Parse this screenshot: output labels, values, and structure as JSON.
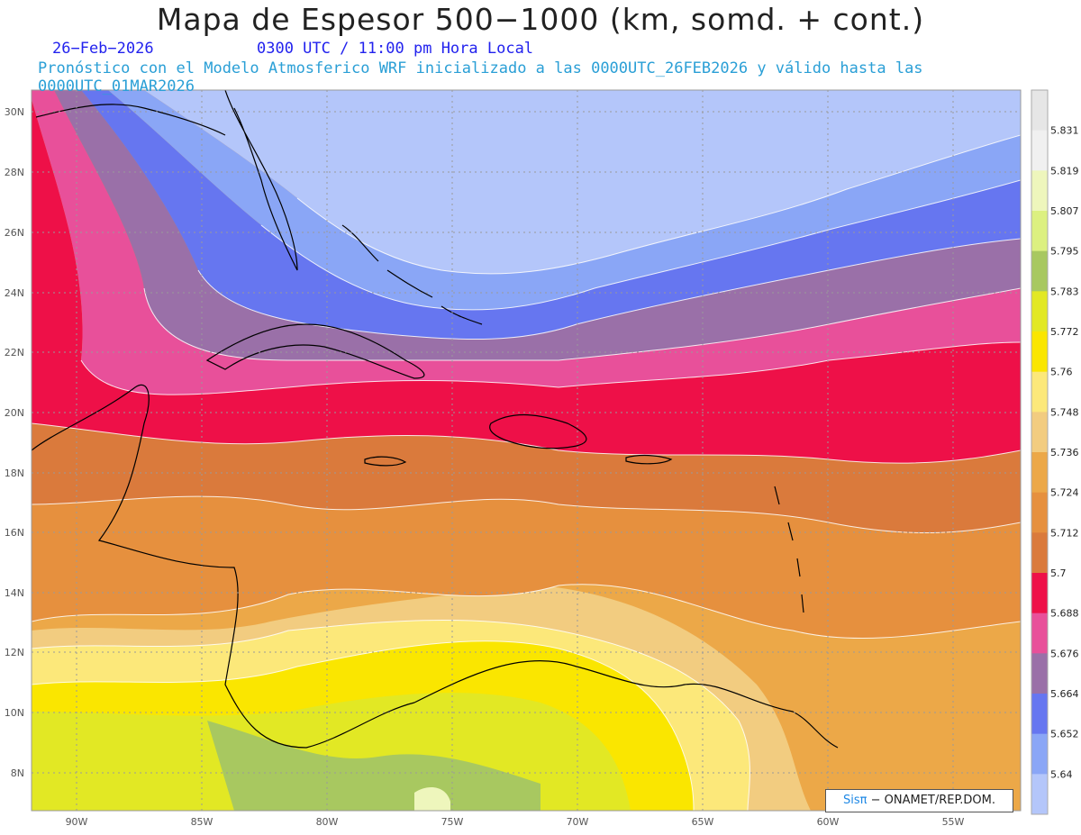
{
  "title": "Mapa de Espesor 500−1000 (km, somd. + cont.)",
  "date": "26−Feb−2026",
  "time": "0300 UTC / 11:00 pm Hora Local",
  "description": "Pronóstico con el Modelo Atmosferico WRF inicializado a las 0000UTC_26FEB2026 y válido hasta las 0000UTC_01MAR2026",
  "credit": {
    "brand": "Sisπ",
    "text": "− ONAMET/REP.DOM."
  },
  "axes": {
    "lat_labels": [
      "30N",
      "28N",
      "26N",
      "24N",
      "22N",
      "20N",
      "18N",
      "16N",
      "14N",
      "12N",
      "10N",
      "8N"
    ],
    "lon_labels": [
      "90W",
      "85W",
      "80W",
      "75W",
      "70W",
      "65W",
      "60W",
      "55W"
    ]
  },
  "legend": {
    "levels": [
      "5.64",
      "5.652",
      "5.664",
      "5.676",
      "5.688",
      "5.7",
      "5.712",
      "5.724",
      "5.736",
      "5.748",
      "5.76",
      "5.772",
      "5.783",
      "5.795",
      "5.807",
      "5.819",
      "5.831"
    ],
    "colors": [
      "#b4c6fa",
      "#8aa6f6",
      "#6676f0",
      "#9a70a8",
      "#e8509a",
      "#ee1048",
      "#da7a3c",
      "#e6903e",
      "#eca848",
      "#f2cc80",
      "#fce87a",
      "#fae600",
      "#e2e824",
      "#a8c860",
      "#dcf080",
      "#eef6bc",
      "#f0f0f0",
      "#e6e6e6"
    ]
  }
}
